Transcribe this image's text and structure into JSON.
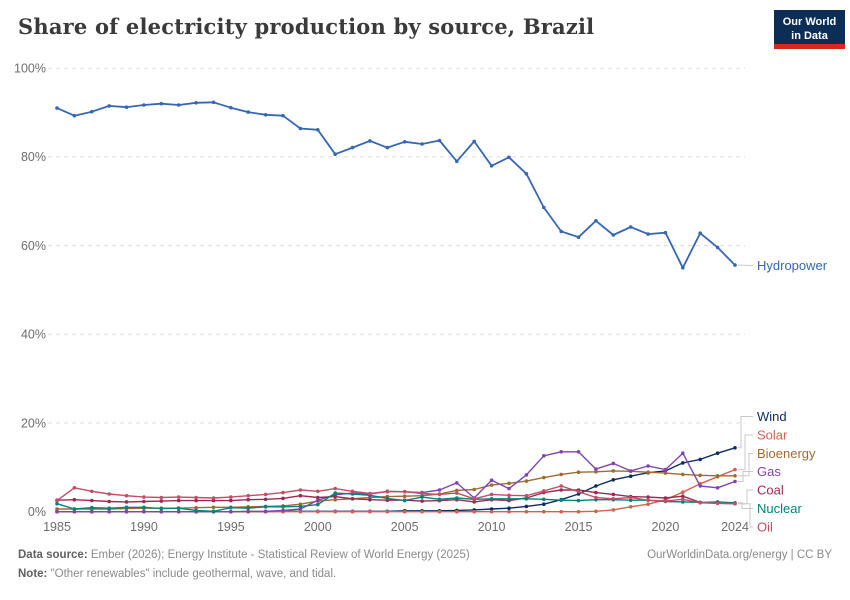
{
  "header": {
    "title": "Share of electricity production by source, Brazil",
    "logo": {
      "line1": "Our World",
      "line2": "in Data"
    }
  },
  "chart_data": {
    "type": "line",
    "title": "Share of electricity production by source, Brazil",
    "xlabel": "",
    "ylabel": "",
    "ylim": [
      0,
      100
    ],
    "grid": "horizontal-dashed",
    "legend_position": "right-end-of-lines",
    "y_tick_labels": [
      "0%",
      "20%",
      "40%",
      "60%",
      "80%",
      "100%"
    ],
    "y_tick_values": [
      0,
      20,
      40,
      60,
      80,
      100
    ],
    "x_tick_labels": [
      "1985",
      "1990",
      "1995",
      "2000",
      "2005",
      "2010",
      "2015",
      "2020",
      "2024"
    ],
    "x_tick_values": [
      1985,
      1990,
      1995,
      2000,
      2005,
      2010,
      2015,
      2020,
      2024
    ],
    "x": [
      1985,
      1986,
      1987,
      1988,
      1989,
      1990,
      1991,
      1992,
      1993,
      1994,
      1995,
      1996,
      1997,
      1998,
      1999,
      2000,
      2001,
      2002,
      2003,
      2004,
      2005,
      2006,
      2007,
      2008,
      2009,
      2010,
      2011,
      2012,
      2013,
      2014,
      2015,
      2016,
      2017,
      2018,
      2019,
      2020,
      2021,
      2022,
      2023,
      2024
    ],
    "series": [
      {
        "name": "Hydropower",
        "color": "#3767b2",
        "values": [
          91.0,
          89.3,
          90.2,
          91.5,
          91.2,
          91.7,
          92.0,
          91.7,
          92.2,
          92.3,
          91.1,
          90.1,
          89.5,
          89.3,
          86.4,
          86.1,
          80.6,
          82.1,
          83.6,
          82.1,
          83.4,
          82.9,
          83.7,
          79.0,
          83.5,
          78.0,
          79.9,
          76.2,
          68.6,
          63.2,
          61.9,
          65.6,
          62.4,
          64.2,
          62.6,
          62.9,
          55.0,
          62.8,
          59.6,
          55.6
        ]
      },
      {
        "name": "Wind",
        "color": "#0e2d62",
        "values": [
          0,
          0,
          0,
          0,
          0,
          0,
          0,
          0,
          0,
          0,
          0,
          0,
          0,
          0.1,
          0.1,
          0.1,
          0.1,
          0.1,
          0.1,
          0.1,
          0.2,
          0.2,
          0.2,
          0.3,
          0.4,
          0.6,
          0.8,
          1.2,
          1.7,
          2.7,
          4.0,
          5.8,
          7.2,
          8.0,
          8.8,
          9.2,
          11.0,
          11.8,
          13.2,
          14.4
        ]
      },
      {
        "name": "Solar",
        "color": "#d4604c",
        "values": [
          0,
          0,
          0,
          0,
          0,
          0,
          0,
          0,
          0,
          0,
          0,
          0,
          0,
          0,
          0,
          0,
          0,
          0,
          0,
          0,
          0,
          0,
          0,
          0,
          0,
          0,
          0,
          0,
          0,
          0,
          0,
          0.1,
          0.4,
          1.1,
          1.7,
          2.7,
          4.4,
          6.3,
          7.9,
          9.5
        ]
      },
      {
        "name": "Bioenergy",
        "color": "#9f6b32",
        "values": [
          0.6,
          0.6,
          0.6,
          0.6,
          0.7,
          0.8,
          0.8,
          0.8,
          0.9,
          1.0,
          1.0,
          1.1,
          1.2,
          1.3,
          1.7,
          2.4,
          2.7,
          2.9,
          3.2,
          3.4,
          3.5,
          3.6,
          4.0,
          4.8,
          5.0,
          6.0,
          6.4,
          6.9,
          7.7,
          8.4,
          8.9,
          9.0,
          9.2,
          9.1,
          8.9,
          8.7,
          8.4,
          8.2,
          8.1,
          8.1
        ]
      },
      {
        "name": "Gas",
        "color": "#8045ad",
        "values": [
          0,
          0,
          0,
          0,
          0,
          0,
          0,
          0,
          0,
          0,
          0,
          0.1,
          0.1,
          0.3,
          0.6,
          2.6,
          3.8,
          4.2,
          4.0,
          4.6,
          4.5,
          4.3,
          4.9,
          6.5,
          3.1,
          7.1,
          5.2,
          8.3,
          12.6,
          13.5,
          13.5,
          9.6,
          10.9,
          9.2,
          10.3,
          9.5,
          13.2,
          5.8,
          5.4,
          6.8
        ]
      },
      {
        "name": "Coal",
        "color": "#9a2a50",
        "values": [
          2.6,
          2.7,
          2.5,
          2.3,
          2.2,
          2.3,
          2.4,
          2.5,
          2.5,
          2.5,
          2.5,
          2.7,
          2.8,
          3.0,
          3.6,
          3.2,
          3.4,
          2.9,
          2.7,
          2.6,
          2.6,
          2.4,
          2.5,
          2.7,
          2.2,
          2.7,
          2.5,
          3.1,
          4.3,
          4.9,
          4.9,
          4.3,
          3.9,
          3.4,
          3.3,
          3.1,
          3.5,
          2.1,
          1.9,
          1.8
        ]
      },
      {
        "name": "Nuclear",
        "color": "#00847a",
        "values": [
          1.8,
          0.6,
          0.9,
          0.8,
          1.0,
          1.0,
          0.7,
          0.8,
          0.3,
          0.1,
          0.9,
          0.8,
          1.1,
          1.1,
          1.2,
          1.6,
          4.2,
          4.0,
          3.7,
          3.0,
          2.5,
          3.3,
          2.8,
          3.1,
          2.8,
          2.9,
          2.9,
          2.9,
          2.8,
          2.6,
          2.5,
          2.7,
          2.7,
          2.6,
          2.6,
          2.3,
          2.2,
          2.1,
          2.2,
          2.0
        ]
      },
      {
        "name": "Oil",
        "color": "#bf5068",
        "values": [
          2.5,
          5.4,
          4.6,
          4.0,
          3.6,
          3.3,
          3.2,
          3.3,
          3.2,
          3.1,
          3.3,
          3.6,
          3.9,
          4.3,
          4.9,
          4.6,
          5.2,
          4.6,
          4.1,
          4.5,
          4.5,
          4.1,
          3.9,
          4.2,
          2.9,
          3.9,
          3.7,
          3.6,
          4.7,
          5.8,
          4.5,
          3.2,
          2.9,
          3.2,
          2.6,
          2.4,
          2.8,
          2.0,
          1.9,
          1.8
        ]
      }
    ]
  },
  "footer": {
    "datasource_label": "Data source:",
    "datasource_text": " Ember (2026); Energy Institute - Statistical Review of World Energy (2025)",
    "note_label": "Note:",
    "note_text": " \"Other renewables\" include geothermal, wave, and tidal.",
    "link": "OurWorldinData.org/energy | CC BY"
  }
}
